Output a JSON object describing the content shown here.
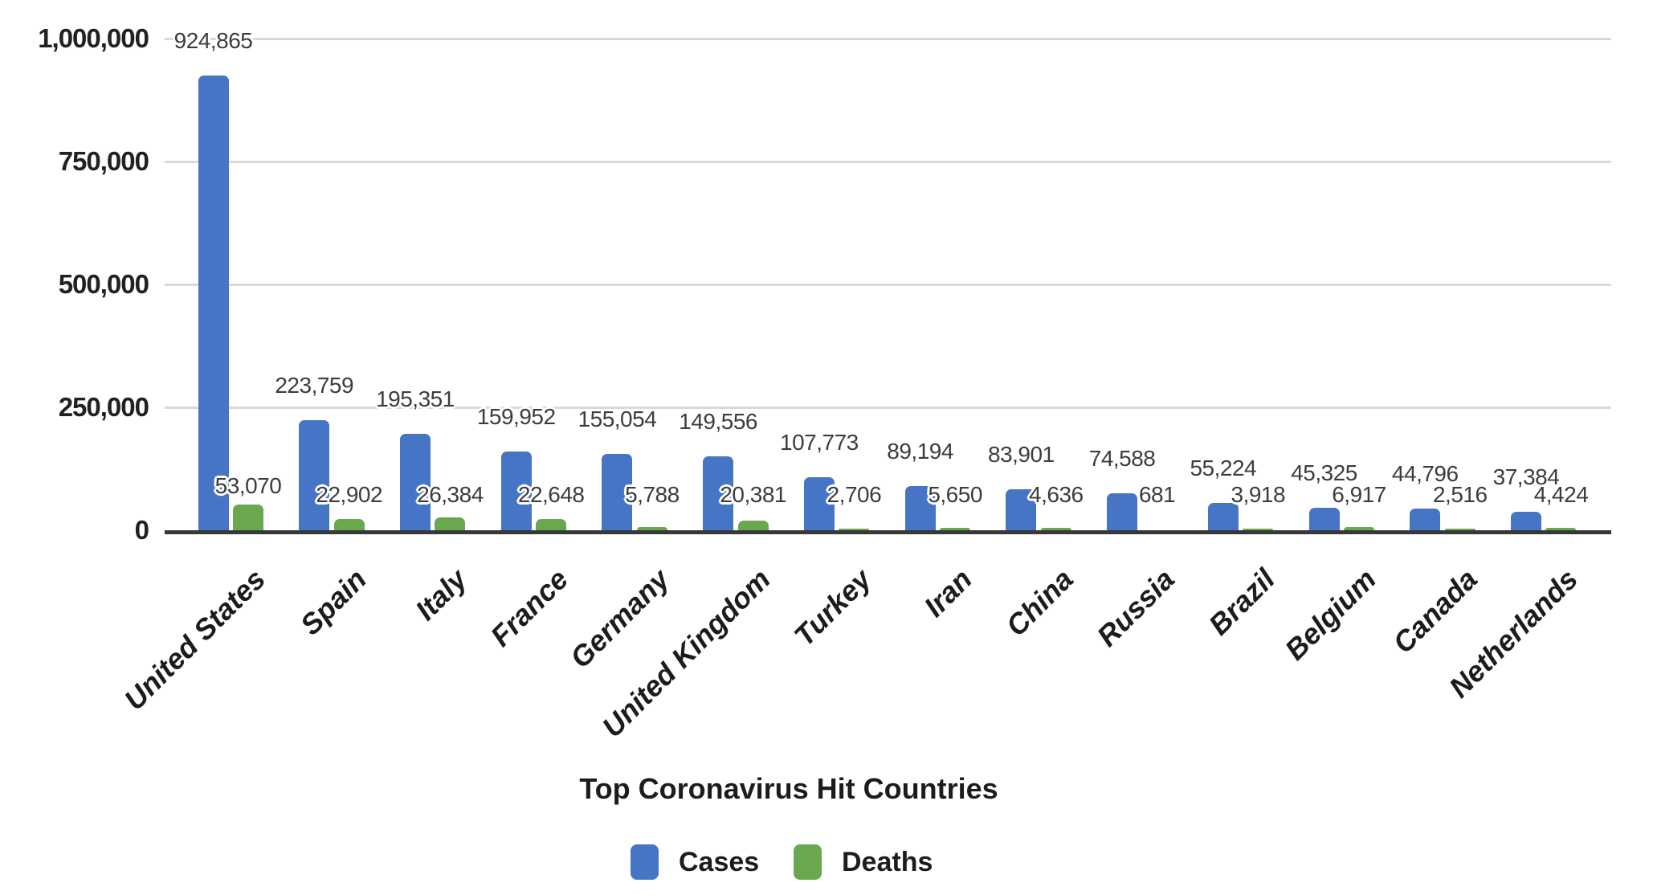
{
  "chart_data": {
    "type": "bar",
    "title": "Top Coronavirus Hit Countries",
    "categories": [
      "United States",
      "Spain",
      "Italy",
      "France",
      "Germany",
      "United Kingdom",
      "Turkey",
      "Iran",
      "China",
      "Russia",
      "Brazil",
      "Belgium",
      "Canada",
      "Netherlands"
    ],
    "series": [
      {
        "name": "Cases",
        "color": "#4575c4",
        "values": [
          924865,
          223759,
          195351,
          159952,
          155054,
          149556,
          107773,
          89194,
          83901,
          74588,
          55224,
          45325,
          44796,
          37384
        ]
      },
      {
        "name": "Deaths",
        "color": "#6aa84f",
        "values": [
          53070,
          22902,
          26384,
          22648,
          5788,
          20381,
          2706,
          5650,
          4636,
          681,
          3918,
          6917,
          2516,
          4424
        ]
      }
    ],
    "y_ticks": [
      "0",
      "250,000",
      "500,000",
      "750,000",
      "1,000,000"
    ],
    "ylim": [
      0,
      1000000
    ],
    "grid": true,
    "data_labels": true,
    "legend_position": "bottom",
    "axis_color": "#383838",
    "gridline_color": "#d9d9d9"
  }
}
